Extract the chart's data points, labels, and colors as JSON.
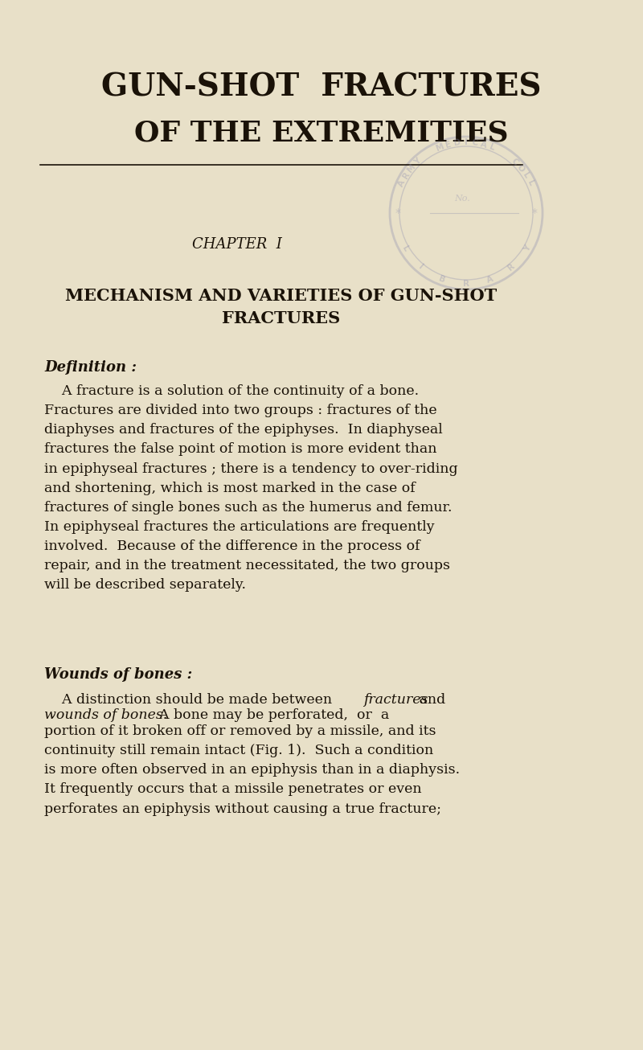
{
  "bg_color": "#e8e0c8",
  "text_color": "#1a1208",
  "title1": "GUN-SHOT  FRACTURES",
  "title2": "OF THE EXTREMITIES",
  "chapter": "CHAPTER  I",
  "heading": "MECHANISM AND VARIETIES OF GUN-SHOT\nFRACTURES",
  "def_label": "Definition :",
  "wounds_label": "Wounds of bones :",
  "para1": "    A fracture is a solution of the continuity of a bone.\nFractures are divided into two groups : fractures of the\ndiaphyses and fractures of the epiphyses.  In diaphyseal\nfractures the false point of motion is more evident than\nin epiphyseal fractures ; there is a tendency to over-riding\nand shortening, which is most marked in the case of\nfractures of single bones such as the humerus and femur.\nIn epiphyseal fractures the articulations are frequently\ninvolved.  Because of the difference in the process of\nrepair, and in the treatment necessitated, the two groups\nwill be described separately.",
  "para2_prefix": "    A distinction should be made between ",
  "para2_italic1": "fractures",
  "para2_mid": " and\n",
  "para2_italic2": "wounds of bones.",
  "para2_suffix": "  A bone may be perforated, or a\nportion of it broken off or removed by a missile, and its\ncontinuity still remain intact (Fig. 1).  Such a condition\nis more often observed in an epiphysis than in a diaphysis.\nIt frequently occurs that a missile penetrates or even\nperforates an epiphysis without causing a true fracture;",
  "stamp_color": "#9090b0",
  "stamp_alpha": 0.35
}
